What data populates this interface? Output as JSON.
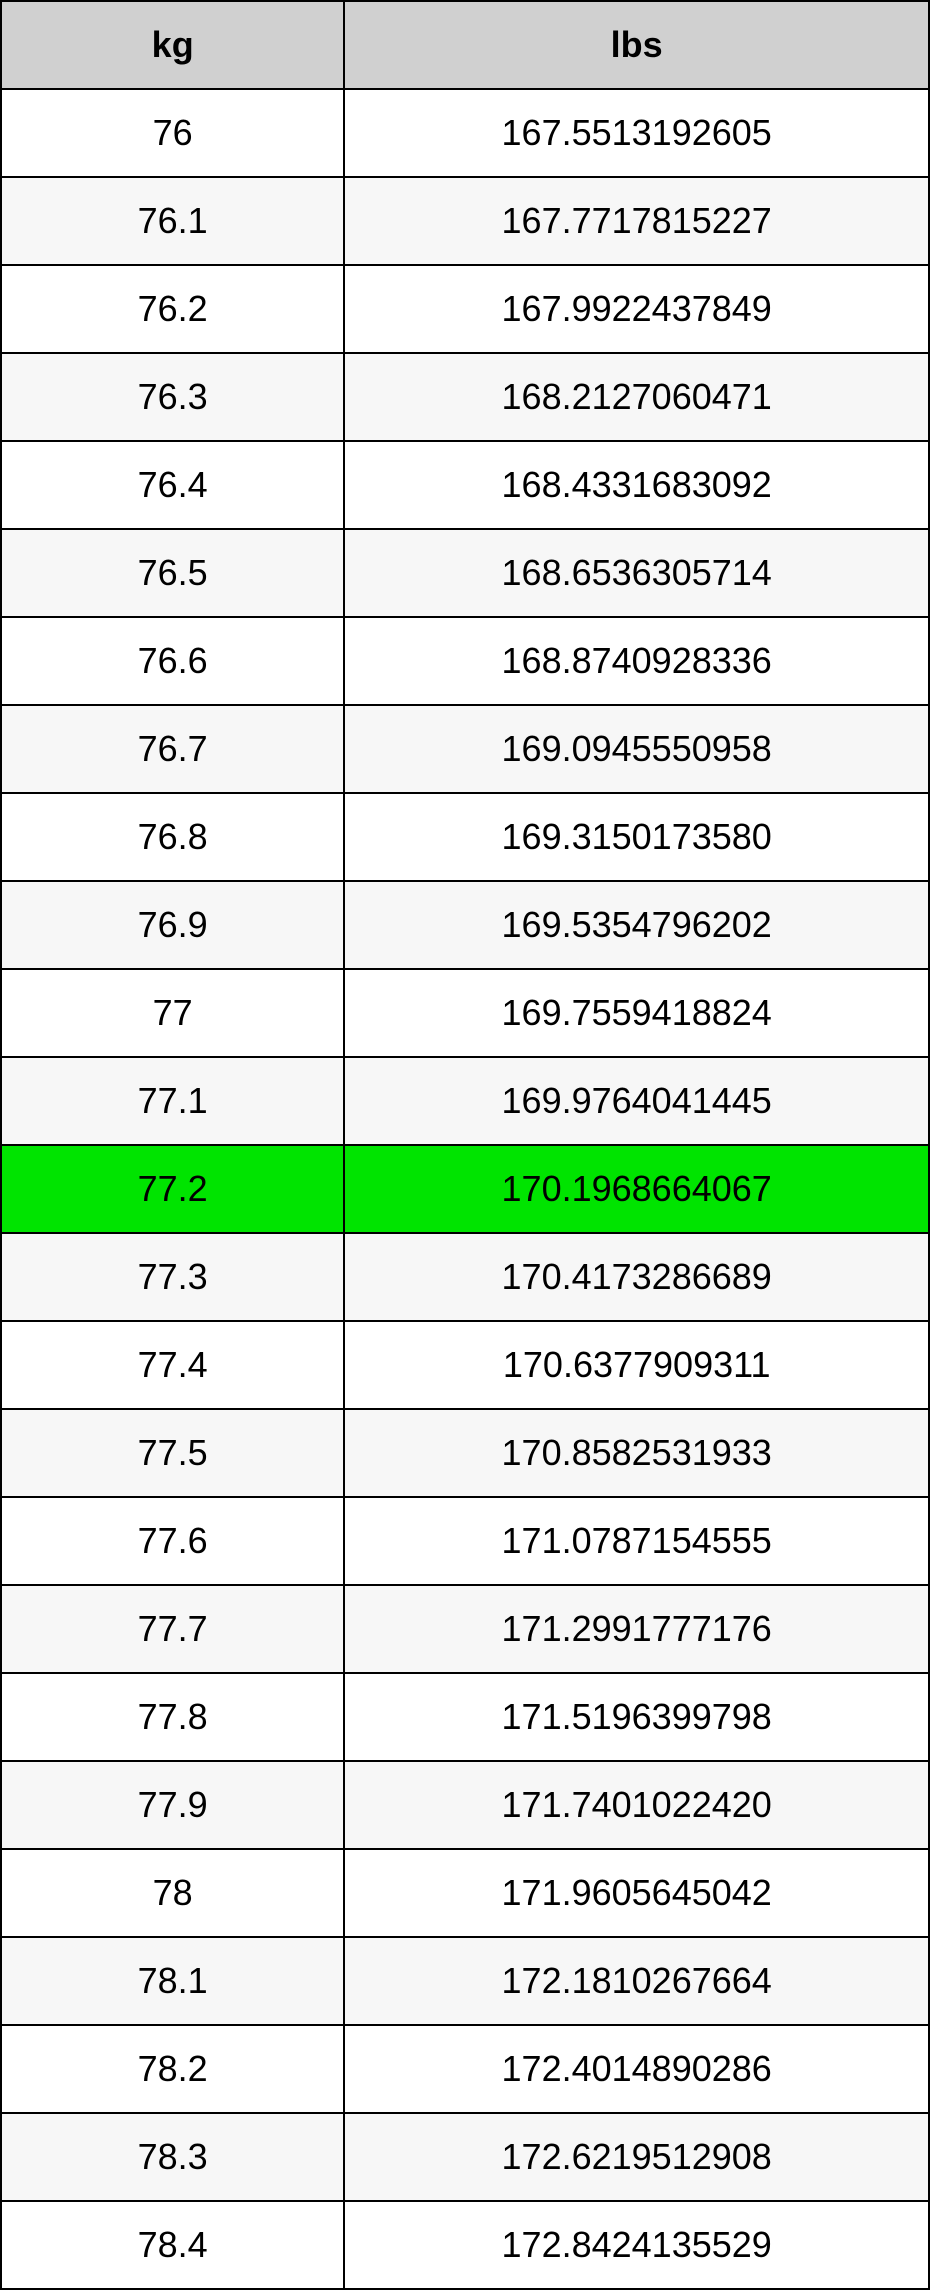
{
  "table": {
    "header_bg": "#d0d0d0",
    "row_bg_even": "#ffffff",
    "row_bg_odd": "#f7f7f7",
    "highlight_bg": "#00e400",
    "border_color": "#000000",
    "text_color": "#000000",
    "font_size": 36,
    "columns": [
      {
        "key": "kg",
        "label": "kg"
      },
      {
        "key": "lbs",
        "label": "lbs"
      }
    ],
    "highlight_index": 12,
    "rows": [
      {
        "kg": "76",
        "lbs": "167.5513192605"
      },
      {
        "kg": "76.1",
        "lbs": "167.7717815227"
      },
      {
        "kg": "76.2",
        "lbs": "167.9922437849"
      },
      {
        "kg": "76.3",
        "lbs": "168.2127060471"
      },
      {
        "kg": "76.4",
        "lbs": "168.4331683092"
      },
      {
        "kg": "76.5",
        "lbs": "168.6536305714"
      },
      {
        "kg": "76.6",
        "lbs": "168.8740928336"
      },
      {
        "kg": "76.7",
        "lbs": "169.0945550958"
      },
      {
        "kg": "76.8",
        "lbs": "169.3150173580"
      },
      {
        "kg": "76.9",
        "lbs": "169.5354796202"
      },
      {
        "kg": "77",
        "lbs": "169.7559418824"
      },
      {
        "kg": "77.1",
        "lbs": "169.9764041445"
      },
      {
        "kg": "77.2",
        "lbs": "170.1968664067"
      },
      {
        "kg": "77.3",
        "lbs": "170.4173286689"
      },
      {
        "kg": "77.4",
        "lbs": "170.6377909311"
      },
      {
        "kg": "77.5",
        "lbs": "170.8582531933"
      },
      {
        "kg": "77.6",
        "lbs": "171.0787154555"
      },
      {
        "kg": "77.7",
        "lbs": "171.2991777176"
      },
      {
        "kg": "77.8",
        "lbs": "171.5196399798"
      },
      {
        "kg": "77.9",
        "lbs": "171.7401022420"
      },
      {
        "kg": "78",
        "lbs": "171.9605645042"
      },
      {
        "kg": "78.1",
        "lbs": "172.1810267664"
      },
      {
        "kg": "78.2",
        "lbs": "172.4014890286"
      },
      {
        "kg": "78.3",
        "lbs": "172.6219512908"
      },
      {
        "kg": "78.4",
        "lbs": "172.8424135529"
      }
    ]
  }
}
